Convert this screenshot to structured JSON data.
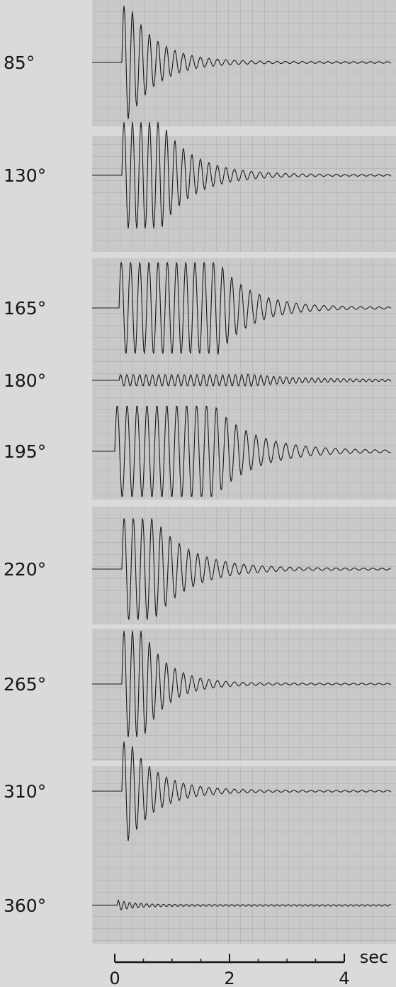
{
  "panels": [
    {
      "label": "85°"
    },
    {
      "label": "130°"
    },
    {
      "label": "165°"
    },
    {
      "label": "180°"
    },
    {
      "label": "195°"
    },
    {
      "label": "220°"
    },
    {
      "label": "265°"
    },
    {
      "label": "310°"
    },
    {
      "label": "360°"
    }
  ],
  "time_axis": {
    "ticks": [
      0,
      2,
      4
    ],
    "unit": "sec"
  }
}
